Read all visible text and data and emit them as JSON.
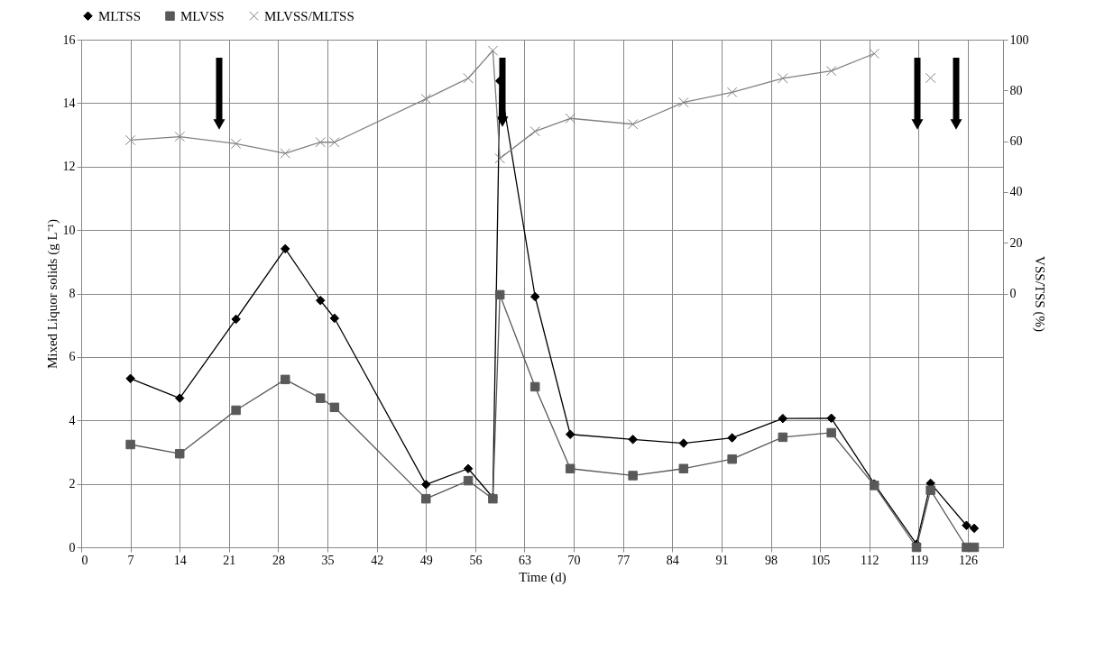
{
  "chart_data": {
    "type": "line",
    "xlabel": "Time (d)",
    "ylabel": "Mixed Liquor solids (g L⁻¹)",
    "y2label": "VSS/TSS (%)",
    "x": [
      7,
      14,
      22,
      29,
      34,
      36,
      49,
      55,
      58.5,
      59.5,
      64.5,
      69.5,
      78.4,
      85.6,
      92.5,
      99.7,
      106.6,
      112.7,
      118.7,
      120.7,
      125.8,
      126.9
    ],
    "series": [
      {
        "name": "MLTSS",
        "color": "#000000",
        "marker": "diamond",
        "values": [
          5.32,
          4.7,
          7.19,
          9.41,
          7.78,
          7.22,
          1.98,
          2.48,
          1.57,
          14.7,
          7.9,
          3.56,
          3.4,
          3.28,
          3.45,
          4.06,
          4.07,
          2.0,
          0.1,
          2.02,
          0.69,
          0.6
        ]
      },
      {
        "name": "MLVSS",
        "color": "#595959",
        "marker": "square",
        "values": [
          3.24,
          2.95,
          4.32,
          5.29,
          4.7,
          4.41,
          1.53,
          2.1,
          1.53,
          7.96,
          5.06,
          2.48,
          2.26,
          2.48,
          2.78,
          3.47,
          3.61,
          1.95,
          0,
          1.8,
          0,
          0
        ]
      },
      {
        "name": "MLVSS/MLTSS",
        "color": "#808080",
        "marker": "cross",
        "axis": "y2",
        "values": [
          60.4,
          61.8,
          59.0,
          55.2,
          59.6,
          59.6,
          76.7,
          84.8,
          95.7,
          53.2,
          63.9,
          69.0,
          66.7,
          75.3,
          79.3,
          84.8,
          87.7,
          94.5,
          null,
          84.9,
          null,
          null
        ]
      }
    ],
    "xlim": [
      0,
      131
    ],
    "xticks": [
      0,
      7,
      14,
      21,
      28,
      35,
      42,
      49,
      56,
      63,
      70,
      77,
      84,
      91,
      98,
      105,
      112,
      119,
      126
    ],
    "ylim": [
      0,
      16
    ],
    "yticks": [
      0,
      2,
      4,
      6,
      8,
      10,
      12,
      14,
      16
    ],
    "y2lim": [
      -100,
      100
    ],
    "y2ticks": [
      0,
      20,
      40,
      60,
      80,
      100
    ],
    "grid": true,
    "legend": "top",
    "line_style": "solid"
  }
}
